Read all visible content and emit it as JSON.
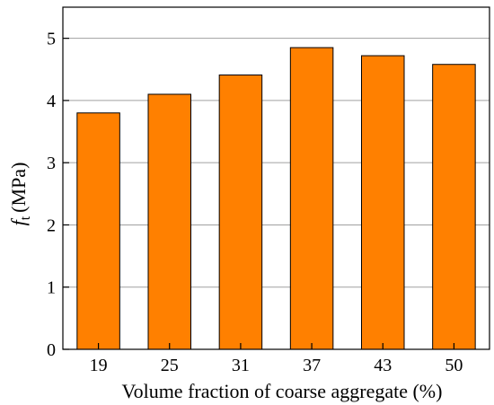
{
  "chart_data": {
    "type": "bar",
    "categories": [
      "19",
      "25",
      "31",
      "37",
      "43",
      "50"
    ],
    "values": [
      3.8,
      4.1,
      4.41,
      4.85,
      4.72,
      4.58
    ],
    "xlabel": "Volume fraction of coarse aggregate (%)",
    "ylabel": {
      "symbol": "f",
      "subscript": "t",
      "unit": "(MPa)"
    },
    "ylim": [
      0,
      5.5
    ],
    "yticks": [
      0,
      1,
      2,
      3,
      4,
      5
    ],
    "grid": "horizontal",
    "legend": "none",
    "colors": {
      "bar_fill": "#ff8000",
      "bar_stroke": "#000000",
      "grid": "#a0a0a0",
      "axis": "#000000"
    }
  }
}
